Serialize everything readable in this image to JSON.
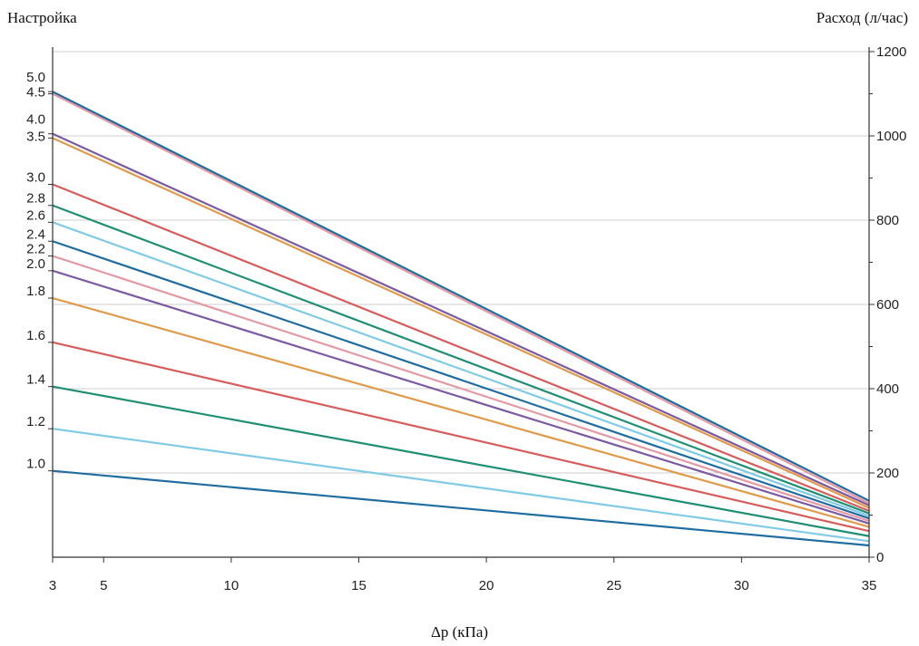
{
  "chart_data": {
    "type": "line",
    "left_axis_title": "Настройка",
    "ylabel": "Расход (л/час)",
    "xlabel": "Δp (кПа)",
    "xlim": [
      3,
      35
    ],
    "ylim": [
      0,
      1200
    ],
    "x_ticks": [
      3,
      5,
      10,
      15,
      20,
      25,
      30,
      35
    ],
    "y_ticks": [
      0,
      200,
      400,
      600,
      800,
      1000,
      1200
    ],
    "grid": "horizontal",
    "series": [
      {
        "name": "1.0",
        "color": "#1f6da0",
        "values": [
          [
            3,
            205
          ],
          [
            35,
            28
          ]
        ]
      },
      {
        "name": "1.2",
        "color": "#7fcbe6",
        "values": [
          [
            3,
            305
          ],
          [
            35,
            38
          ]
        ]
      },
      {
        "name": "1.4",
        "color": "#1f8f74",
        "values": [
          [
            3,
            405
          ],
          [
            35,
            50
          ]
        ]
      },
      {
        "name": "1.6",
        "color": "#d95c5c",
        "values": [
          [
            3,
            510
          ],
          [
            35,
            62
          ]
        ]
      },
      {
        "name": "1.8",
        "color": "#e09a4a",
        "values": [
          [
            3,
            615
          ],
          [
            35,
            72
          ]
        ]
      },
      {
        "name": "2.0",
        "color": "#7b5aa3",
        "values": [
          [
            3,
            680
          ],
          [
            35,
            80
          ]
        ]
      },
      {
        "name": "2.2",
        "color": "#e39aa5",
        "values": [
          [
            3,
            715
          ],
          [
            35,
            86
          ]
        ]
      },
      {
        "name": "2.4",
        "color": "#1f6da0",
        "values": [
          [
            3,
            750
          ],
          [
            35,
            92
          ]
        ]
      },
      {
        "name": "2.6",
        "color": "#7fcbe6",
        "values": [
          [
            3,
            795
          ],
          [
            35,
            98
          ]
        ]
      },
      {
        "name": "2.8",
        "color": "#1f8f74",
        "values": [
          [
            3,
            835
          ],
          [
            35,
            104
          ]
        ]
      },
      {
        "name": "3.0",
        "color": "#d95c5c",
        "values": [
          [
            3,
            885
          ],
          [
            35,
            110
          ]
        ]
      },
      {
        "name": "3.5",
        "color": "#e09a4a",
        "values": [
          [
            3,
            995
          ],
          [
            35,
            117
          ]
        ]
      },
      {
        "name": "4.0",
        "color": "#7b5aa3",
        "values": [
          [
            3,
            1005
          ],
          [
            35,
            123
          ]
        ]
      },
      {
        "name": "4.5",
        "color": "#e39aa5",
        "values": [
          [
            3,
            1100
          ],
          [
            35,
            128
          ]
        ]
      },
      {
        "name": "5.0",
        "color": "#1f6da0",
        "values": [
          [
            3,
            1105
          ],
          [
            35,
            134
          ]
        ]
      }
    ]
  }
}
